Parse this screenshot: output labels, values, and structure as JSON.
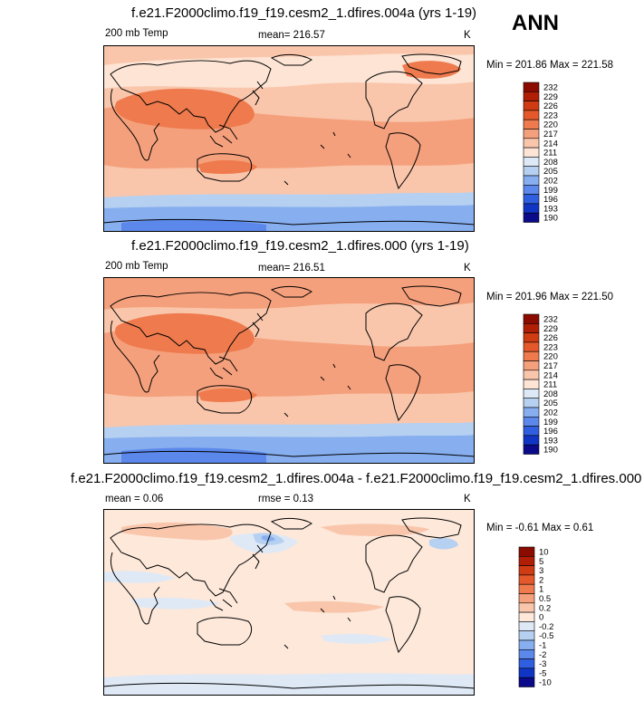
{
  "season": "ANN",
  "chart_data": [
    {
      "type": "heatmap",
      "title": "f.e21.F2000climo.f19_f19.cesm2_1.dfires.004a (yrs 1-19)",
      "left_label": "200 mb Temp",
      "center_label": "mean= 216.57",
      "units": "K",
      "minmax": "Min = 201.86 Max = 221.58",
      "min": 201.86,
      "max": 221.58,
      "mean": 216.57,
      "levels": [
        "232",
        "229",
        "226",
        "223",
        "220",
        "217",
        "214",
        "211",
        "208",
        "205",
        "202",
        "199",
        "196",
        "193",
        "190"
      ],
      "colors": [
        "#8b0b00",
        "#b01e06",
        "#cf3b12",
        "#e4582b",
        "#ee7a4d",
        "#f5a07c",
        "#f9c6ab",
        "#fde4d4",
        "#dde9f6",
        "#b6d0f1",
        "#87aff0",
        "#5b88ea",
        "#2f5fe0",
        "#1035c4",
        "#0a0a8a"
      ]
    },
    {
      "type": "heatmap",
      "title": "f.e21.F2000climo.f19_f19.cesm2_1.dfires.000 (yrs 1-19)",
      "left_label": "200 mb Temp",
      "center_label": "mean= 216.51",
      "units": "K",
      "minmax": "Min = 201.96 Max = 221.50",
      "min": 201.96,
      "max": 221.5,
      "mean": 216.51,
      "levels": [
        "232",
        "229",
        "226",
        "223",
        "220",
        "217",
        "214",
        "211",
        "208",
        "205",
        "202",
        "199",
        "196",
        "193",
        "190"
      ],
      "colors": [
        "#8b0b00",
        "#b01e06",
        "#cf3b12",
        "#e4582b",
        "#ee7a4d",
        "#f5a07c",
        "#f9c6ab",
        "#fde4d4",
        "#dde9f6",
        "#b6d0f1",
        "#87aff0",
        "#5b88ea",
        "#2f5fe0",
        "#1035c4",
        "#0a0a8a"
      ]
    },
    {
      "type": "heatmap",
      "title": "f.e21.F2000climo.f19_f19.cesm2_1.dfires.004a - f.e21.F2000climo.f19_f19.cesm2_1.dfires.000",
      "left_label": "mean =   0.06",
      "center_label": "rmse =   0.13",
      "units": "K",
      "minmax": "Min =  -0.61 Max =   0.61",
      "min": -0.61,
      "max": 0.61,
      "mean": 0.06,
      "rmse": 0.13,
      "levels": [
        "10",
        "5",
        "3",
        "2",
        "1",
        "0.5",
        "0.2",
        "0",
        "-0.2",
        "-0.5",
        "-1",
        "-2",
        "-3",
        "-5",
        "-10"
      ],
      "colors": [
        "#8b0b00",
        "#b01e06",
        "#cf3b12",
        "#e4582b",
        "#ee7a4d",
        "#f5a07c",
        "#f9c6ab",
        "#fde8da",
        "#dfe9f6",
        "#b6d0f1",
        "#87aff0",
        "#5b88ea",
        "#2f5fe0",
        "#1035c4",
        "#0a0a8a"
      ]
    }
  ]
}
